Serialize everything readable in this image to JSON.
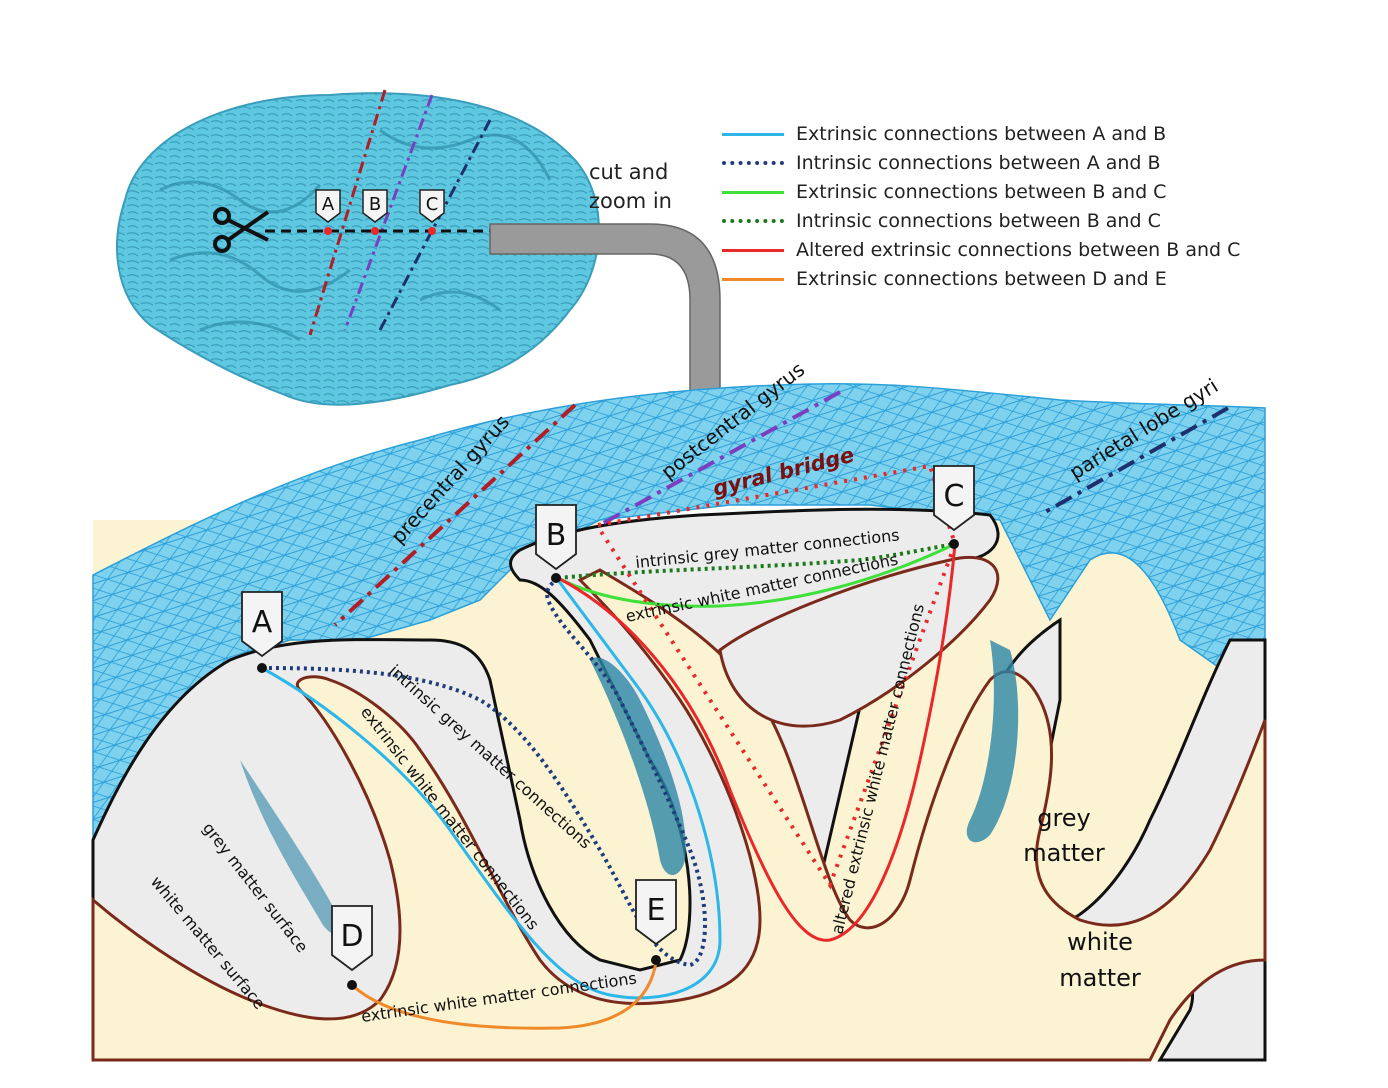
{
  "legend": [
    {
      "label": "Extrinsic connections between A and B",
      "color": "#2cb7e8",
      "style": "solid"
    },
    {
      "label": "Intrinsic connections between A and B",
      "color": "#1e3d7a",
      "style": "dotted"
    },
    {
      "label": "Extrinsic connections between B and C",
      "color": "#3fe03a",
      "style": "solid"
    },
    {
      "label": "Intrinsic connections between B and C",
      "color": "#1a7a1a",
      "style": "dotted"
    },
    {
      "label": "Altered extrinsic connections between B and C",
      "color": "#e8282a",
      "style": "solid"
    },
    {
      "label": "Extrinsic connections between D and E",
      "color": "#f0892a",
      "style": "solid"
    }
  ],
  "cut_label": [
    "cut and",
    "zoom in"
  ],
  "brain_markers": [
    "A",
    "B",
    "C"
  ],
  "nodes": [
    "A",
    "B",
    "C",
    "D",
    "E"
  ],
  "gyri": {
    "precentral": "precentral gyrus",
    "postcentral": "postcentral gyrus",
    "parietal": "parietal lobe gyri"
  },
  "gyral_bridge": "gyral bridge",
  "path_labels": {
    "ab_intrinsic": "intrinsic grey matter connections",
    "ab_extrinsic": "extrinsic white matter connections",
    "bc_intrinsic": "intrinsic grey matter connections",
    "bc_extrinsic": "extrinsic white matter connections",
    "bc_altered": "altered extrinsic white matter connections",
    "de_extrinsic": "extrinsic white matter connections"
  },
  "surface_labels": {
    "grey_surface": "grey matter surface",
    "white_surface": "white matter surface"
  },
  "tissue_labels": {
    "grey": [
      "grey",
      "matter"
    ],
    "white": [
      "white",
      "matter"
    ]
  },
  "colors": {
    "brain": "#5ec8e0",
    "mesh": "#3aa6dc",
    "grey_matter": "#ececec",
    "white_matter": "#fbf3d2",
    "white_surface_line": "#7a2a1a",
    "precentral_line": "#b01e28",
    "postcentral_line": "#7a3fc0",
    "parietal_line": "#1e2f6e",
    "bridge_dots": "#e8282a"
  }
}
